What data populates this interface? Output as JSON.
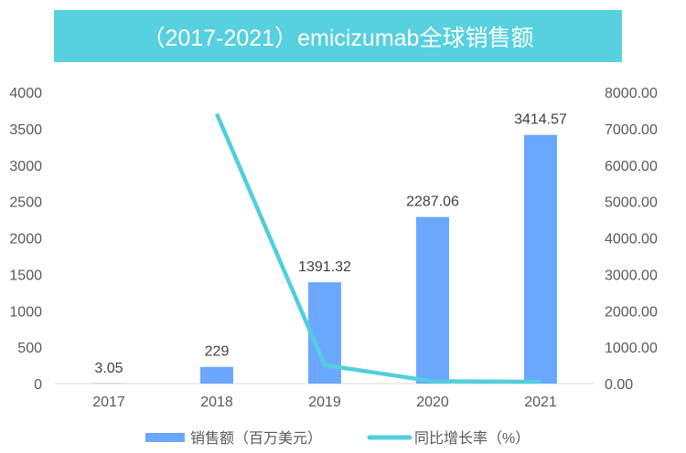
{
  "chart_data": {
    "type": "bar+line",
    "title": "（2017-2021）emicizumab全球销售额",
    "categories": [
      "2017",
      "2018",
      "2019",
      "2020",
      "2021"
    ],
    "series": [
      {
        "name": "销售额（百万美元）",
        "type": "bar",
        "axis": "left",
        "values": [
          3.05,
          229,
          1391.32,
          2287.06,
          3414.57
        ],
        "labels": [
          "3.05",
          "229",
          "1391.32",
          "2287.06",
          "3414.57"
        ],
        "color": "#6AA8FF"
      },
      {
        "name": "同比增长率（%）",
        "type": "line",
        "axis": "right",
        "values": [
          null,
          7408.2,
          507.6,
          64.4,
          49.3
        ],
        "color": "#52CEDC"
      }
    ],
    "ylim_left": [
      0,
      4000
    ],
    "yticks_left": [
      "0",
      "500",
      "1000",
      "1500",
      "2000",
      "2500",
      "3000",
      "3500",
      "4000"
    ],
    "ylim_right": [
      0,
      8000
    ],
    "yticks_right": [
      "0.00",
      "1000.00",
      "2000.00",
      "3000.00",
      "4000.00",
      "5000.00",
      "6000.00",
      "7000.00",
      "8000.00"
    ],
    "legend": "bottom",
    "grid": false
  }
}
